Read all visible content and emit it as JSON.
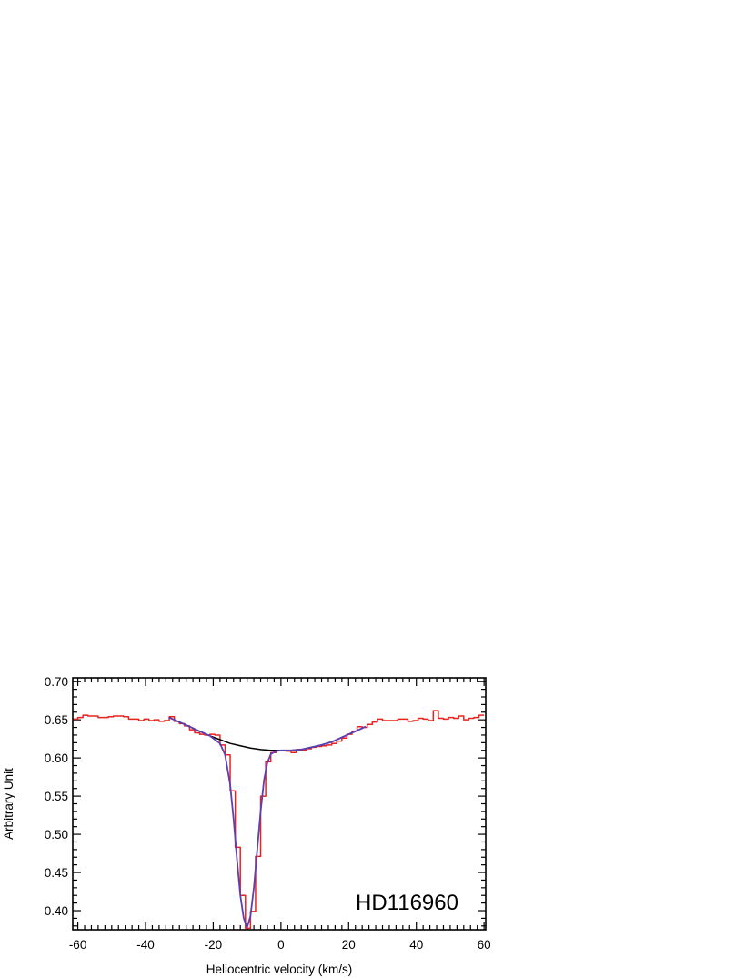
{
  "chart_data": {
    "type": "line",
    "title": "",
    "xlabel": "Heliocentric velocity (km/s)",
    "ylabel": "Arbitrary Unit",
    "xlim": [
      -61.5,
      60.5
    ],
    "ylim": [
      0.375,
      0.705
    ],
    "x_ticks": [
      -60,
      -40,
      -20,
      0,
      20,
      40,
      60
    ],
    "y_ticks": [
      0.4,
      0.45,
      0.5,
      0.55,
      0.6,
      0.65,
      0.7
    ],
    "grid": false,
    "legend": "none",
    "annotation": "HD116960",
    "series": [
      {
        "kind": "histogram",
        "color": "#e8231f",
        "x": [
          -61.5,
          -60.0,
          -58.5,
          -57.0,
          -55.5,
          -54.0,
          -52.5,
          -51.0,
          -49.5,
          -48.0,
          -46.5,
          -45.0,
          -43.5,
          -42.0,
          -40.5,
          -39.0,
          -37.5,
          -36.0,
          -34.5,
          -33.0,
          -31.5,
          -30.0,
          -28.5,
          -27.0,
          -25.5,
          -24.0,
          -22.5,
          -21.0,
          -19.5,
          -18.0,
          -16.5,
          -15.0,
          -13.5,
          -12.0,
          -10.5,
          -9.0,
          -7.5,
          -6.0,
          -4.5,
          -3.0,
          -1.5,
          0.0,
          1.5,
          3.0,
          4.5,
          6.0,
          7.5,
          9.0,
          10.5,
          12.0,
          13.5,
          15.0,
          16.5,
          18.0,
          19.5,
          21.0,
          22.5,
          24.0,
          25.5,
          27.0,
          28.5,
          30.0,
          31.5,
          33.0,
          34.5,
          36.0,
          37.5,
          39.0,
          40.5,
          42.0,
          43.5,
          45.0,
          46.5,
          48.0,
          49.5,
          51.0,
          52.5,
          54.0,
          55.5,
          57.0,
          58.5
        ],
        "y": [
          0.651,
          0.653,
          0.656,
          0.655,
          0.655,
          0.653,
          0.653,
          0.654,
          0.655,
          0.655,
          0.654,
          0.651,
          0.651,
          0.649,
          0.651,
          0.649,
          0.65,
          0.648,
          0.649,
          0.654,
          0.648,
          0.645,
          0.642,
          0.637,
          0.633,
          0.631,
          0.63,
          0.631,
          0.63,
          0.617,
          0.604,
          0.557,
          0.483,
          0.42,
          0.377,
          0.399,
          0.471,
          0.55,
          0.595,
          0.607,
          0.61,
          0.61,
          0.609,
          0.607,
          0.611,
          0.61,
          0.612,
          0.614,
          0.615,
          0.616,
          0.617,
          0.619,
          0.622,
          0.626,
          0.631,
          0.635,
          0.641,
          0.64,
          0.644,
          0.647,
          0.651,
          0.649,
          0.649,
          0.649,
          0.651,
          0.651,
          0.648,
          0.649,
          0.652,
          0.651,
          0.649,
          0.662,
          0.652,
          0.651,
          0.653,
          0.652,
          0.655,
          0.65,
          0.652,
          0.653,
          0.656
        ]
      },
      {
        "kind": "continuum",
        "color": "#000000",
        "x": [
          -33,
          -30,
          -27,
          -24,
          -21,
          -18,
          -15,
          -12,
          -9,
          -6,
          -3,
          0,
          3,
          6,
          9,
          12,
          15,
          18,
          21,
          24,
          25
        ],
        "y": [
          0.653,
          0.647,
          0.641,
          0.635,
          0.629,
          0.624,
          0.619,
          0.616,
          0.613,
          0.611,
          0.61,
          0.61,
          0.61,
          0.611,
          0.614,
          0.617,
          0.621,
          0.627,
          0.633,
          0.639,
          0.641
        ]
      },
      {
        "kind": "fit",
        "color": "#5a3fb5",
        "x": [
          -33,
          -30,
          -27,
          -24,
          -21,
          -18,
          -16.5,
          -15,
          -14,
          -13,
          -12,
          -11,
          -10,
          -9,
          -8,
          -7,
          -6,
          -5,
          -4,
          -3,
          -1.5,
          0,
          3,
          6,
          9,
          12,
          15,
          18,
          21,
          24,
          25
        ],
        "y": [
          0.653,
          0.647,
          0.641,
          0.635,
          0.629,
          0.619,
          0.604,
          0.565,
          0.52,
          0.468,
          0.42,
          0.39,
          0.378,
          0.393,
          0.43,
          0.48,
          0.53,
          0.571,
          0.594,
          0.605,
          0.609,
          0.61,
          0.61,
          0.611,
          0.614,
          0.617,
          0.621,
          0.627,
          0.633,
          0.639,
          0.641
        ]
      }
    ]
  }
}
